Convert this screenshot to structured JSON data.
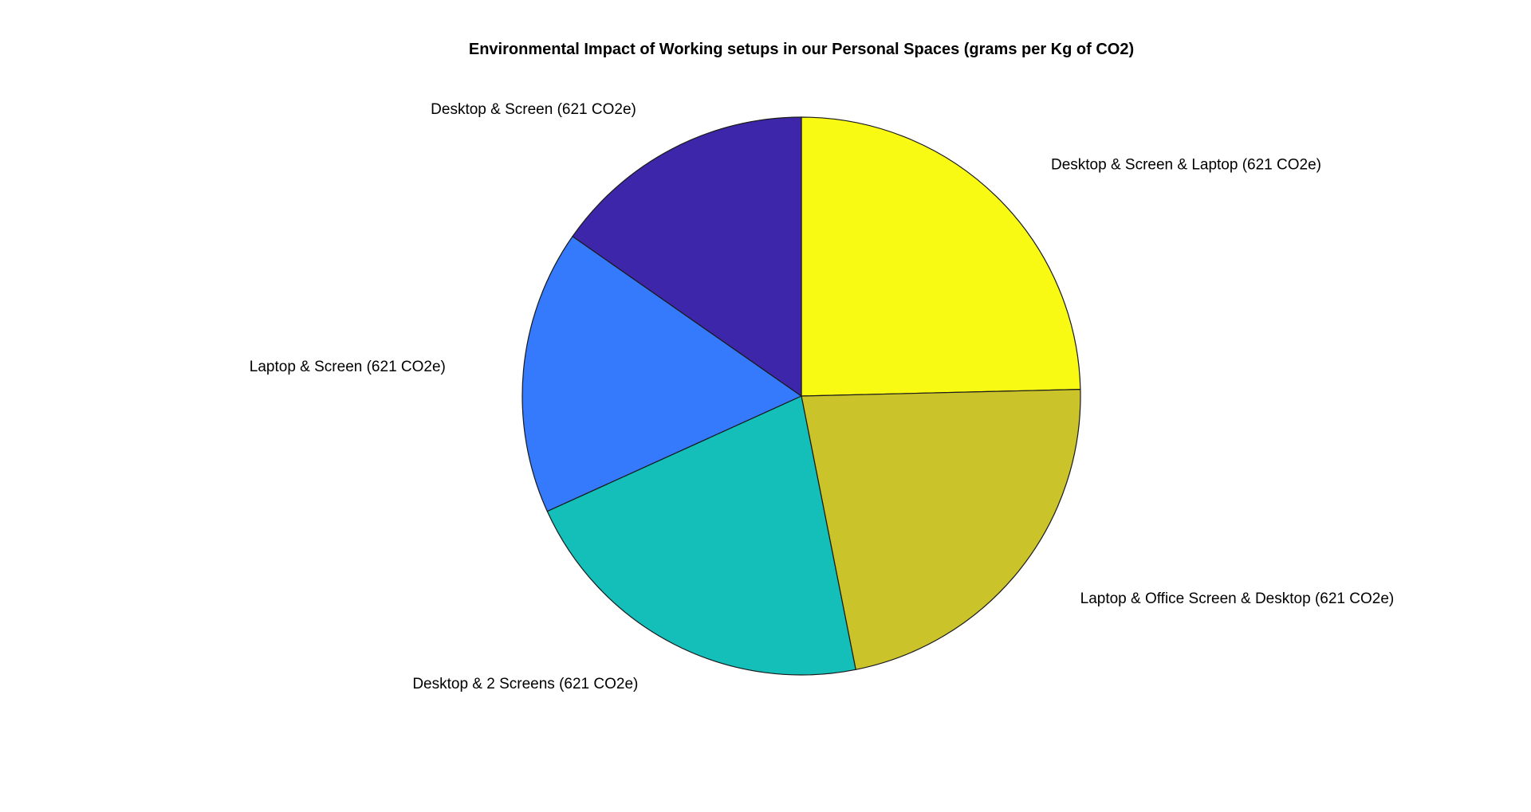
{
  "chart_data": {
    "type": "pie",
    "title": "Environmental Impact of Working setups in our Personal Spaces (grams per Kg of CO2)",
    "start_angle_deg": 0,
    "direction": "clockwise",
    "slices": [
      {
        "name": "Desktop & Screen & Laptop",
        "label": "Desktop & Screen & Laptop (621 CO2e)",
        "share": 0.2462,
        "color": "#f9fa14"
      },
      {
        "name": "Laptop & Office Screen & Desktop",
        "label": "Laptop & Office Screen & Desktop (621 CO2e)",
        "share": 0.2226,
        "color": "#cbc32a"
      },
      {
        "name": "Desktop & 2 Screens",
        "label": "Desktop & 2 Screens (621 CO2e)",
        "share": 0.2134,
        "color": "#13bfb8"
      },
      {
        "name": "Laptop & Screen",
        "label": "Laptop & Screen (621 CO2e)",
        "share": 0.1648,
        "color": "#3579fc"
      },
      {
        "name": "Desktop & Screen",
        "label": "Desktop & Screen (621 CO2e)",
        "share": 0.153,
        "color": "#3d26aa"
      }
    ]
  }
}
